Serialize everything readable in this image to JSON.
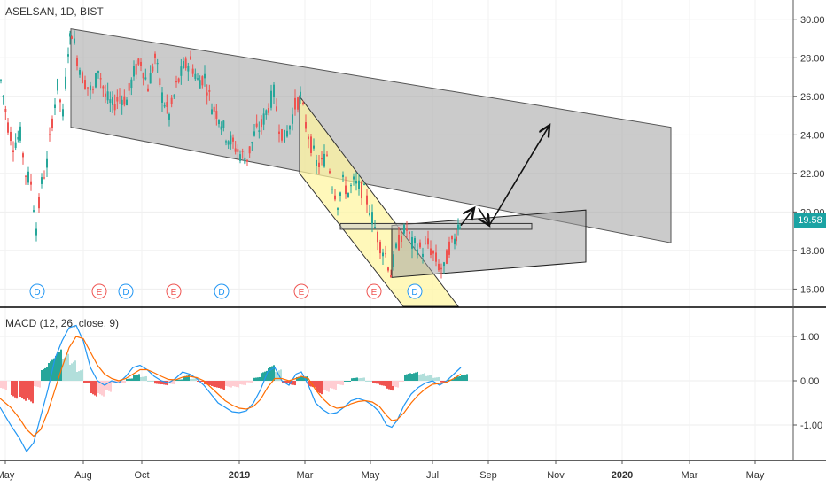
{
  "header": {
    "symbol_line": "ASELSAN, 1D, BIST"
  },
  "macd_panel": {
    "title": "MACD (12, 26, close, 9)"
  },
  "last_price": {
    "label": "19.58",
    "value": 19.58,
    "color": "#1ba3a3"
  },
  "colors": {
    "up": "#26a69a",
    "down": "#ef5350",
    "macd_line": "#2196f3",
    "signal_line": "#ff6d00",
    "channel_fill": "#a0a0a0",
    "wedge_fill": "#fff59d",
    "event_e": "#ef5350",
    "event_d": "#2196f3"
  },
  "chart_data": [
    {
      "type": "candlestick",
      "title": "ASELSAN, 1D, BIST",
      "y_axis": {
        "ticks": [
          "16.00",
          "18.00",
          "20.00",
          "22.00",
          "24.00",
          "26.00",
          "28.00",
          "30.00"
        ],
        "ylim": [
          15.1,
          31.0
        ]
      },
      "x_axis": {
        "ticks": [
          "May",
          "Aug",
          "Oct",
          "2019",
          "Mar",
          "May",
          "Jul",
          "Sep",
          "Nov",
          "2020",
          "Mar",
          "May"
        ]
      },
      "close_path": [
        {
          "x": 0,
          "y": 26.8
        },
        {
          "x": 8,
          "y": 24.5
        },
        {
          "x": 14,
          "y": 23.5
        },
        {
          "x": 22,
          "y": 24.0
        },
        {
          "x": 28,
          "y": 22.0
        },
        {
          "x": 34,
          "y": 21.5
        },
        {
          "x": 40,
          "y": 19.2
        },
        {
          "x": 46,
          "y": 21.5
        },
        {
          "x": 52,
          "y": 22.5
        },
        {
          "x": 58,
          "y": 24.8
        },
        {
          "x": 64,
          "y": 26.5
        },
        {
          "x": 70,
          "y": 25.0
        },
        {
          "x": 76,
          "y": 28.5
        },
        {
          "x": 80,
          "y": 29.4
        },
        {
          "x": 86,
          "y": 28.0
        },
        {
          "x": 92,
          "y": 27.0
        },
        {
          "x": 98,
          "y": 26.5
        },
        {
          "x": 104,
          "y": 26.2
        },
        {
          "x": 110,
          "y": 27.5
        },
        {
          "x": 118,
          "y": 26.0
        },
        {
          "x": 126,
          "y": 25.5
        },
        {
          "x": 134,
          "y": 26.0
        },
        {
          "x": 142,
          "y": 25.8
        },
        {
          "x": 150,
          "y": 27.2
        },
        {
          "x": 158,
          "y": 27.8
        },
        {
          "x": 166,
          "y": 26.5
        },
        {
          "x": 174,
          "y": 28.0
        },
        {
          "x": 182,
          "y": 26.0
        },
        {
          "x": 190,
          "y": 25.0
        },
        {
          "x": 198,
          "y": 26.5
        },
        {
          "x": 206,
          "y": 27.5
        },
        {
          "x": 214,
          "y": 27.8
        },
        {
          "x": 222,
          "y": 26.8
        },
        {
          "x": 230,
          "y": 27.0
        },
        {
          "x": 238,
          "y": 25.5
        },
        {
          "x": 246,
          "y": 25.0
        },
        {
          "x": 254,
          "y": 24.0
        },
        {
          "x": 262,
          "y": 23.5
        },
        {
          "x": 270,
          "y": 23.0
        },
        {
          "x": 278,
          "y": 22.8
        },
        {
          "x": 286,
          "y": 24.0
        },
        {
          "x": 294,
          "y": 24.5
        },
        {
          "x": 302,
          "y": 25.5
        },
        {
          "x": 308,
          "y": 26.2
        },
        {
          "x": 314,
          "y": 24.5
        },
        {
          "x": 320,
          "y": 23.8
        },
        {
          "x": 326,
          "y": 24.5
        },
        {
          "x": 332,
          "y": 25.5
        },
        {
          "x": 338,
          "y": 26.0
        },
        {
          "x": 344,
          "y": 24.5
        },
        {
          "x": 350,
          "y": 23.5
        },
        {
          "x": 356,
          "y": 22.5
        },
        {
          "x": 362,
          "y": 22.5
        },
        {
          "x": 368,
          "y": 23.0
        },
        {
          "x": 374,
          "y": 21.5
        },
        {
          "x": 380,
          "y": 20.5
        },
        {
          "x": 386,
          "y": 21.5
        },
        {
          "x": 392,
          "y": 21.0
        },
        {
          "x": 398,
          "y": 21.5
        },
        {
          "x": 404,
          "y": 21.3
        },
        {
          "x": 410,
          "y": 21.0
        },
        {
          "x": 416,
          "y": 20.2
        },
        {
          "x": 422,
          "y": 19.2
        },
        {
          "x": 428,
          "y": 18.3
        },
        {
          "x": 434,
          "y": 17.8
        },
        {
          "x": 440,
          "y": 16.8
        },
        {
          "x": 446,
          "y": 18.0
        },
        {
          "x": 452,
          "y": 18.8
        },
        {
          "x": 458,
          "y": 19.1
        },
        {
          "x": 464,
          "y": 18.3
        },
        {
          "x": 470,
          "y": 18.2
        },
        {
          "x": 476,
          "y": 18.0
        },
        {
          "x": 482,
          "y": 18.3
        },
        {
          "x": 488,
          "y": 17.8
        },
        {
          "x": 494,
          "y": 17.2
        },
        {
          "x": 500,
          "y": 17.0
        },
        {
          "x": 506,
          "y": 18.2
        },
        {
          "x": 512,
          "y": 18.5
        },
        {
          "x": 516,
          "y": 19.3
        },
        {
          "x": 520,
          "y": 19.58
        }
      ],
      "drawings": {
        "descending_channel": {
          "upper": [
            [
              80,
              29.5
            ],
            [
              757,
              24.4
            ]
          ],
          "lower": [
            [
              80,
              24.4
            ],
            [
              757,
              18.4
            ]
          ]
        },
        "falling_wedge_band": {
          "upper": [
            [
              338,
              26.0
            ],
            [
              517,
              15.1
            ]
          ],
          "lower": [
            [
              338,
              22.0
            ],
            [
              455,
              15.1
            ]
          ]
        },
        "rectangle": {
          "x": [
            384,
            600
          ],
          "y": [
            19.1,
            19.4
          ]
        },
        "triangle": {
          "top": [
            [
              442,
              19.3
            ],
            [
              661,
              20.1
            ]
          ],
          "bottom": [
            [
              442,
              16.6
            ],
            [
              661,
              17.4
            ]
          ]
        },
        "arrows": [
          [
            [
              520,
              19.3
            ],
            [
              535,
              20.2
            ]
          ],
          [
            [
              540,
              20.2
            ],
            [
              552,
              19.3
            ]
          ],
          [
            [
              552,
              19.3
            ],
            [
              620,
              24.5
            ]
          ]
        ]
      },
      "events": [
        {
          "x": 42,
          "label": "D"
        },
        {
          "x": 112,
          "label": "E"
        },
        {
          "x": 142,
          "label": "D"
        },
        {
          "x": 196,
          "label": "E"
        },
        {
          "x": 250,
          "label": "D"
        },
        {
          "x": 340,
          "label": "E"
        },
        {
          "x": 422,
          "label": "E"
        },
        {
          "x": 468,
          "label": "D"
        }
      ]
    },
    {
      "type": "line",
      "title": "MACD (12, 26, close, 9)",
      "y_axis": {
        "ticks": [
          "1.00",
          "0.00",
          "-1.00"
        ],
        "ylim": [
          -1.8,
          1.6
        ]
      },
      "series": [
        {
          "name": "MACD",
          "color": "#2196f3",
          "points": [
            [
              0,
              -0.6
            ],
            [
              12,
              -1.0
            ],
            [
              22,
              -1.3
            ],
            [
              30,
              -1.6
            ],
            [
              38,
              -1.4
            ],
            [
              46,
              -0.8
            ],
            [
              54,
              -0.2
            ],
            [
              62,
              0.5
            ],
            [
              70,
              0.9
            ],
            [
              78,
              1.2
            ],
            [
              86,
              1.25
            ],
            [
              94,
              0.9
            ],
            [
              102,
              0.3
            ],
            [
              110,
              0.0
            ],
            [
              118,
              -0.1
            ],
            [
              126,
              0.0
            ],
            [
              134,
              -0.05
            ],
            [
              142,
              0.1
            ],
            [
              150,
              0.3
            ],
            [
              158,
              0.35
            ],
            [
              166,
              0.25
            ],
            [
              174,
              0.1
            ],
            [
              182,
              0.0
            ],
            [
              190,
              -0.05
            ],
            [
              198,
              0.05
            ],
            [
              206,
              0.2
            ],
            [
              214,
              0.15
            ],
            [
              222,
              0.05
            ],
            [
              230,
              -0.1
            ],
            [
              238,
              -0.3
            ],
            [
              246,
              -0.5
            ],
            [
              254,
              -0.6
            ],
            [
              262,
              -0.7
            ],
            [
              270,
              -0.72
            ],
            [
              278,
              -0.68
            ],
            [
              286,
              -0.5
            ],
            [
              294,
              -0.2
            ],
            [
              302,
              0.2
            ],
            [
              310,
              0.3
            ],
            [
              318,
              0.0
            ],
            [
              326,
              -0.1
            ],
            [
              334,
              0.15
            ],
            [
              340,
              0.2
            ],
            [
              348,
              -0.1
            ],
            [
              356,
              -0.5
            ],
            [
              364,
              -0.65
            ],
            [
              372,
              -0.75
            ],
            [
              380,
              -0.72
            ],
            [
              388,
              -0.6
            ],
            [
              396,
              -0.45
            ],
            [
              404,
              -0.4
            ],
            [
              412,
              -0.45
            ],
            [
              420,
              -0.55
            ],
            [
              428,
              -0.7
            ],
            [
              436,
              -1.0
            ],
            [
              442,
              -1.05
            ],
            [
              448,
              -0.9
            ],
            [
              456,
              -0.55
            ],
            [
              464,
              -0.3
            ],
            [
              472,
              -0.15
            ],
            [
              480,
              -0.05
            ],
            [
              488,
              0.0
            ],
            [
              496,
              -0.1
            ],
            [
              504,
              0.0
            ],
            [
              512,
              0.15
            ],
            [
              520,
              0.3
            ]
          ]
        },
        {
          "name": "Signal",
          "color": "#ff6d00",
          "points": [
            [
              0,
              -0.4
            ],
            [
              12,
              -0.6
            ],
            [
              22,
              -0.85
            ],
            [
              30,
              -1.1
            ],
            [
              38,
              -1.25
            ],
            [
              46,
              -1.1
            ],
            [
              54,
              -0.7
            ],
            [
              62,
              -0.2
            ],
            [
              70,
              0.3
            ],
            [
              78,
              0.75
            ],
            [
              86,
              1.0
            ],
            [
              94,
              0.95
            ],
            [
              102,
              0.65
            ],
            [
              110,
              0.35
            ],
            [
              118,
              0.15
            ],
            [
              126,
              0.05
            ],
            [
              134,
              0.0
            ],
            [
              142,
              0.05
            ],
            [
              150,
              0.15
            ],
            [
              158,
              0.25
            ],
            [
              166,
              0.25
            ],
            [
              174,
              0.18
            ],
            [
              182,
              0.1
            ],
            [
              190,
              0.03
            ],
            [
              198,
              0.02
            ],
            [
              206,
              0.08
            ],
            [
              214,
              0.1
            ],
            [
              222,
              0.07
            ],
            [
              230,
              0.0
            ],
            [
              238,
              -0.15
            ],
            [
              246,
              -0.3
            ],
            [
              254,
              -0.45
            ],
            [
              262,
              -0.55
            ],
            [
              270,
              -0.62
            ],
            [
              278,
              -0.64
            ],
            [
              286,
              -0.58
            ],
            [
              294,
              -0.42
            ],
            [
              302,
              -0.15
            ],
            [
              310,
              0.05
            ],
            [
              318,
              0.05
            ],
            [
              326,
              0.0
            ],
            [
              334,
              0.05
            ],
            [
              340,
              0.1
            ],
            [
              348,
              0.05
            ],
            [
              356,
              -0.2
            ],
            [
              364,
              -0.4
            ],
            [
              372,
              -0.55
            ],
            [
              380,
              -0.62
            ],
            [
              388,
              -0.6
            ],
            [
              396,
              -0.52
            ],
            [
              404,
              -0.47
            ],
            [
              412,
              -0.45
            ],
            [
              420,
              -0.48
            ],
            [
              428,
              -0.58
            ],
            [
              436,
              -0.78
            ],
            [
              442,
              -0.9
            ],
            [
              448,
              -0.88
            ],
            [
              456,
              -0.72
            ],
            [
              464,
              -0.5
            ],
            [
              472,
              -0.32
            ],
            [
              480,
              -0.18
            ],
            [
              488,
              -0.08
            ],
            [
              496,
              -0.06
            ],
            [
              504,
              -0.03
            ],
            [
              512,
              0.05
            ],
            [
              520,
              0.15
            ]
          ]
        }
      ]
    }
  ]
}
